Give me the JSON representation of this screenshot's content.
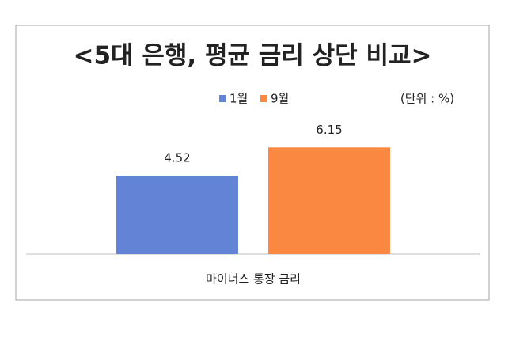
{
  "chart_data": {
    "type": "bar",
    "title": "<5대 은행, 평균 금리 상단 비교>",
    "subtitle": "(단위 : %)",
    "categories": [
      "마이너스 통장 금리"
    ],
    "series": [
      {
        "name": "1월",
        "color": "#6383d6",
        "values": [
          4.52
        ]
      },
      {
        "name": "9월",
        "color": "#fb8841",
        "values": [
          6.15
        ]
      }
    ]
  }
}
